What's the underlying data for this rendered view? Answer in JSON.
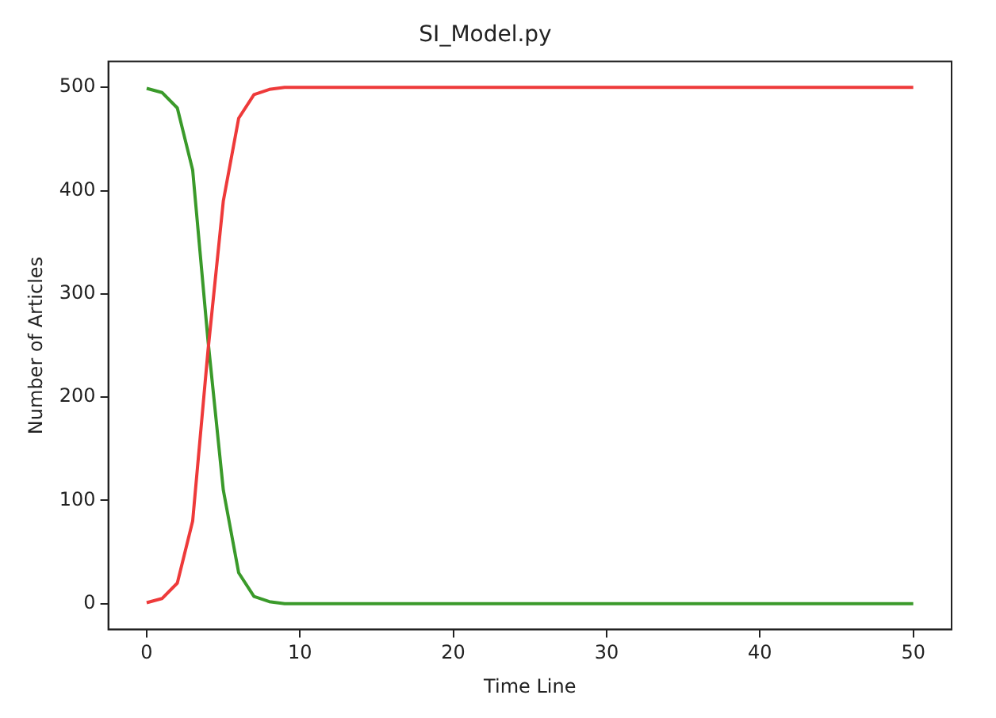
{
  "chart_data": {
    "type": "line",
    "title": "SI_Model.py",
    "xlabel": "Time Line",
    "ylabel": "Number of Articles",
    "x": [
      0,
      1,
      2,
      3,
      4,
      5,
      6,
      7,
      8,
      9,
      10,
      11,
      12,
      13,
      14,
      15,
      16,
      17,
      18,
      19,
      20,
      21,
      22,
      23,
      24,
      25,
      26,
      27,
      28,
      29,
      30,
      31,
      32,
      33,
      34,
      35,
      36,
      37,
      38,
      39,
      40,
      41,
      42,
      43,
      44,
      45,
      46,
      47,
      48,
      49,
      50
    ],
    "series": [
      {
        "color": "#ee3a3a",
        "values": [
          1,
          5,
          20,
          80,
          245,
          390,
          470,
          493,
          498,
          500,
          500,
          500,
          500,
          500,
          500,
          500,
          500,
          500,
          500,
          500,
          500,
          500,
          500,
          500,
          500,
          500,
          500,
          500,
          500,
          500,
          500,
          500,
          500,
          500,
          500,
          500,
          500,
          500,
          500,
          500,
          500,
          500,
          500,
          500,
          500,
          500,
          500,
          500,
          500,
          500,
          500
        ]
      },
      {
        "color": "#3a9a2a",
        "values": [
          499,
          495,
          480,
          420,
          255,
          110,
          30,
          7,
          2,
          0,
          0,
          0,
          0,
          0,
          0,
          0,
          0,
          0,
          0,
          0,
          0,
          0,
          0,
          0,
          0,
          0,
          0,
          0,
          0,
          0,
          0,
          0,
          0,
          0,
          0,
          0,
          0,
          0,
          0,
          0,
          0,
          0,
          0,
          0,
          0,
          0,
          0,
          0,
          0,
          0,
          0
        ]
      }
    ],
    "xlim": [
      -2.5,
      52.5
    ],
    "xticks": [
      0,
      10,
      20,
      30,
      40,
      50
    ],
    "ylim": [
      -25,
      525
    ],
    "yticks": [
      0,
      100,
      200,
      300,
      400,
      500
    ],
    "grid": false,
    "legend": false,
    "marker": "none",
    "line_style": "solid"
  }
}
